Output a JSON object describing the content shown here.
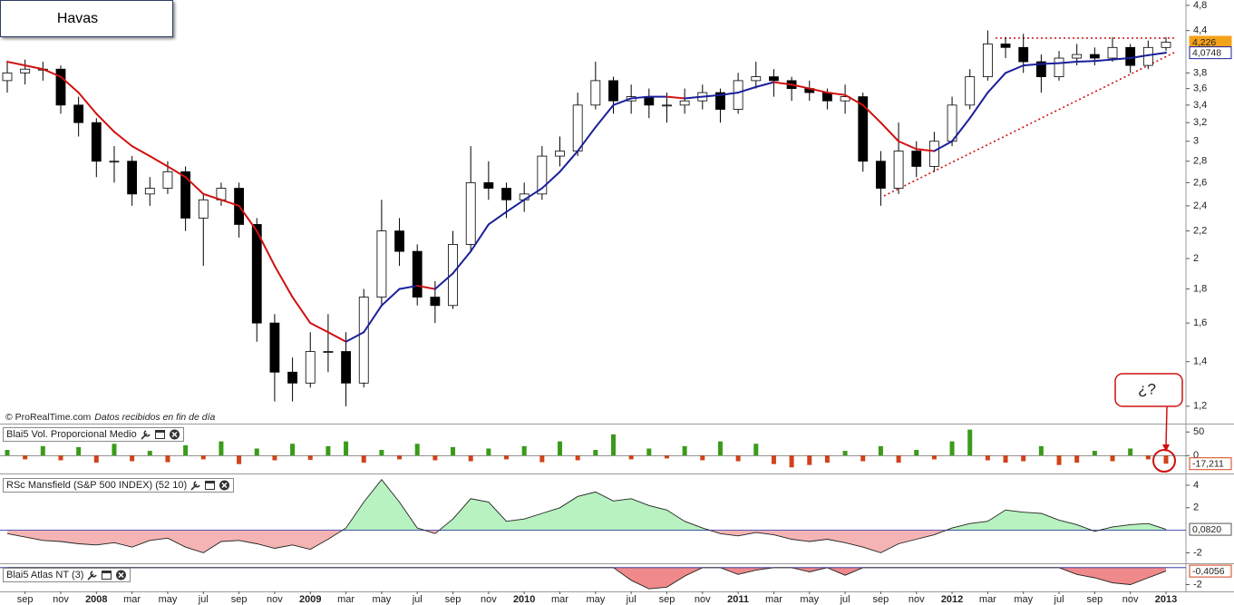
{
  "chart_data": [
    {
      "type": "candlestick",
      "title": "Havas",
      "source": "© ProRealTime.com",
      "source_note": "Datos recibidos en fin de día",
      "annotation": "¿?",
      "categories": [
        null,
        "sep",
        null,
        "nov",
        null,
        "2008",
        null,
        "mar",
        null,
        "may",
        null,
        "jul",
        null,
        "sep",
        null,
        "nov",
        null,
        "2009",
        null,
        "mar",
        null,
        "may",
        null,
        "jul",
        null,
        "sep",
        null,
        "nov",
        null,
        "2010",
        null,
        "mar",
        null,
        "may",
        null,
        "jul",
        null,
        "sep",
        null,
        "nov",
        null,
        "2011",
        null,
        "mar",
        null,
        "may",
        null,
        "jul",
        null,
        "sep",
        null,
        "nov",
        null,
        "2012",
        null,
        "mar",
        null,
        "may",
        null,
        "jul",
        null,
        "sep",
        null,
        "nov",
        null,
        "2013"
      ],
      "open": [
        3.7,
        3.8,
        3.85,
        3.85,
        3.4,
        3.2,
        2.8,
        2.8,
        2.5,
        2.55,
        2.7,
        2.3,
        2.45,
        2.55,
        2.25,
        1.6,
        1.35,
        1.3,
        1.45,
        1.45,
        1.3,
        1.75,
        2.2,
        2.05,
        1.75,
        1.7,
        2.1,
        2.6,
        2.55,
        2.45,
        2.5,
        2.85,
        2.9,
        3.4,
        3.7,
        3.45,
        3.5,
        3.4,
        3.4,
        3.45,
        3.55,
        3.35,
        3.7,
        3.75,
        3.7,
        3.6,
        3.55,
        3.45,
        3.5,
        2.8,
        2.55,
        2.9,
        2.75,
        3.0,
        3.4,
        3.75,
        4.2,
        4.15,
        3.95,
        3.75,
        4.0,
        4.05,
        4.0,
        4.15,
        3.9,
        4.15
      ],
      "high": [
        3.95,
        3.98,
        3.95,
        3.9,
        3.5,
        3.25,
        2.95,
        2.85,
        2.65,
        2.8,
        2.75,
        2.5,
        2.6,
        2.6,
        2.3,
        1.65,
        1.42,
        1.55,
        1.65,
        1.55,
        1.8,
        2.45,
        2.3,
        2.1,
        1.85,
        2.2,
        2.95,
        2.8,
        2.6,
        2.6,
        2.95,
        3.05,
        3.55,
        3.95,
        3.75,
        3.65,
        3.6,
        3.55,
        3.6,
        3.65,
        3.6,
        3.8,
        3.95,
        3.85,
        3.75,
        3.7,
        3.6,
        3.65,
        3.55,
        2.9,
        3.2,
        3.0,
        3.1,
        3.5,
        3.85,
        4.4,
        4.3,
        4.35,
        4.05,
        4.1,
        4.2,
        4.15,
        4.3,
        4.2,
        4.25,
        4.3
      ],
      "low": [
        3.55,
        3.65,
        3.7,
        3.3,
        3.05,
        2.65,
        2.6,
        2.4,
        2.4,
        2.5,
        2.2,
        1.95,
        2.4,
        2.15,
        1.5,
        1.22,
        1.22,
        1.28,
        1.35,
        1.2,
        1.28,
        1.7,
        1.95,
        1.7,
        1.6,
        1.68,
        2.05,
        2.45,
        2.3,
        2.35,
        2.45,
        2.75,
        2.85,
        3.35,
        3.3,
        3.3,
        3.25,
        3.2,
        3.3,
        3.35,
        3.2,
        3.3,
        3.6,
        3.5,
        3.45,
        3.45,
        3.35,
        3.3,
        2.7,
        2.4,
        2.5,
        2.65,
        2.7,
        2.95,
        3.35,
        3.7,
        4.0,
        3.8,
        3.55,
        3.7,
        3.9,
        3.9,
        3.95,
        3.8,
        3.85,
        4.1
      ],
      "close": [
        3.8,
        3.85,
        3.85,
        3.4,
        3.2,
        2.8,
        2.8,
        2.5,
        2.55,
        2.7,
        2.3,
        2.45,
        2.55,
        2.25,
        1.6,
        1.35,
        1.3,
        1.45,
        1.45,
        1.3,
        1.75,
        2.2,
        2.05,
        1.75,
        1.7,
        2.1,
        2.6,
        2.55,
        2.45,
        2.5,
        2.85,
        2.9,
        3.4,
        3.7,
        3.45,
        3.5,
        3.4,
        3.4,
        3.45,
        3.55,
        3.35,
        3.7,
        3.75,
        3.7,
        3.6,
        3.55,
        3.45,
        3.5,
        2.8,
        2.55,
        2.9,
        2.75,
        3.0,
        3.4,
        3.75,
        4.2,
        4.15,
        3.95,
        3.75,
        4.0,
        4.05,
        4.0,
        4.15,
        3.9,
        4.15,
        4.226
      ],
      "value_labels": [
        null,
        null,
        null,
        null,
        null,
        null,
        null,
        null,
        null,
        null,
        null,
        null,
        null,
        null,
        null,
        null,
        null,
        null,
        null,
        null,
        null,
        null,
        null,
        null,
        null,
        null,
        null,
        null,
        null,
        null,
        null,
        null,
        null,
        null,
        null,
        null,
        null,
        null,
        null,
        null,
        null,
        null,
        null,
        null,
        null,
        null,
        null,
        null,
        null,
        null,
        null,
        null,
        null,
        null,
        null,
        null,
        null,
        null,
        null,
        null,
        null,
        null,
        null,
        null,
        null,
        "4,226"
      ],
      "up_color": "#ffffff",
      "down_color": "#000000",
      "label_color": "#f5a21b",
      "moving_average": {
        "values": [
          3.95,
          3.9,
          3.85,
          3.75,
          3.55,
          3.3,
          3.1,
          2.95,
          2.85,
          2.75,
          2.65,
          2.5,
          2.45,
          2.4,
          2.2,
          1.95,
          1.75,
          1.6,
          1.55,
          1.5,
          1.55,
          1.7,
          1.8,
          1.82,
          1.8,
          1.9,
          2.05,
          2.25,
          2.35,
          2.45,
          2.55,
          2.7,
          2.9,
          3.15,
          3.4,
          3.48,
          3.5,
          3.5,
          3.48,
          3.5,
          3.52,
          3.55,
          3.62,
          3.68,
          3.65,
          3.6,
          3.55,
          3.52,
          3.4,
          3.2,
          3.0,
          2.92,
          2.9,
          3.0,
          3.25,
          3.55,
          3.8,
          3.9,
          3.92,
          3.93,
          3.95,
          3.96,
          3.98,
          4.0,
          4.04,
          4.0748
        ],
        "value_labels": [
          null,
          null,
          null,
          null,
          null,
          null,
          null,
          null,
          null,
          null,
          null,
          null,
          null,
          null,
          null,
          null,
          null,
          null,
          null,
          null,
          null,
          null,
          null,
          null,
          null,
          null,
          null,
          null,
          null,
          null,
          null,
          null,
          null,
          null,
          null,
          null,
          null,
          null,
          null,
          null,
          null,
          null,
          null,
          null,
          null,
          null,
          null,
          null,
          null,
          null,
          null,
          null,
          null,
          null,
          null,
          null,
          null,
          null,
          null,
          null,
          null,
          null,
          null,
          null,
          null,
          "4,0748"
        ],
        "up_color": "#1b1f9a",
        "down_color": "#d01010"
      },
      "log_scale": true,
      "grid": false,
      "ylim": [
        1.13,
        4.89
      ],
      "yticks": [
        {
          "value": 1.2,
          "label": "1,2"
        },
        {
          "value": 1.4,
          "label": "1,4"
        },
        {
          "value": 1.6,
          "label": "1,6"
        },
        {
          "value": 1.8,
          "label": "1,8"
        },
        2,
        {
          "value": 2.2,
          "label": "2,2"
        },
        {
          "value": 2.4,
          "label": "2,4"
        },
        {
          "value": 2.6,
          "label": "2,6"
        },
        {
          "value": 2.8,
          "label": "2,8"
        },
        3,
        {
          "value": 3.2,
          "label": "3,2"
        },
        {
          "value": 3.4,
          "label": "3,4"
        },
        {
          "value": 3.6,
          "label": "3,6"
        },
        {
          "value": 3.8,
          "label": "3,8"
        },
        {
          "value": 4.4,
          "label": "4,4"
        },
        {
          "value": 4.8,
          "label": "4,8"
        }
      ]
    },
    {
      "type": "bar",
      "title": "Blai5 Vol. Proporcional Medio",
      "values": [
        12,
        -8,
        20,
        -10,
        18,
        -15,
        25,
        -12,
        10,
        -14,
        22,
        -8,
        30,
        -18,
        15,
        -10,
        25,
        -9,
        20,
        30,
        -15,
        12,
        -8,
        25,
        -10,
        18,
        -12,
        15,
        -8,
        20,
        -14,
        30,
        -10,
        12,
        45,
        -8,
        15,
        -6,
        20,
        -10,
        30,
        -12,
        25,
        -18,
        -25,
        -20,
        -15,
        10,
        -12,
        20,
        -15,
        12,
        -8,
        30,
        55,
        -10,
        -15,
        -12,
        20,
        -20,
        -15,
        10,
        -12,
        15,
        -8,
        -17.211
      ],
      "value_labels": [
        null,
        null,
        null,
        null,
        null,
        null,
        null,
        null,
        null,
        null,
        null,
        null,
        null,
        null,
        null,
        null,
        null,
        null,
        null,
        null,
        null,
        null,
        null,
        null,
        null,
        null,
        null,
        null,
        null,
        null,
        null,
        null,
        null,
        null,
        null,
        null,
        null,
        null,
        null,
        null,
        null,
        null,
        null,
        null,
        null,
        null,
        null,
        null,
        null,
        null,
        null,
        null,
        null,
        null,
        null,
        null,
        null,
        null,
        null,
        null,
        null,
        null,
        null,
        null,
        null,
        "-17,211"
      ],
      "up_color": "#3a9b1a",
      "down_color": "#d2421a",
      "ylim": [
        -36,
        62
      ],
      "yticks": [
        50,
        0
      ]
    },
    {
      "type": "area",
      "title": "RSc Mansfield (S&P 500 INDEX) (52 10)",
      "values": [
        -0.3,
        -0.6,
        -0.9,
        -1.0,
        -1.2,
        -1.3,
        -1.1,
        -1.5,
        -0.9,
        -0.7,
        -1.5,
        -2.0,
        -1.0,
        -0.9,
        -1.2,
        -1.6,
        -1.3,
        -1.7,
        -0.8,
        0.2,
        2.5,
        4.5,
        2.5,
        0.2,
        -0.3,
        1.0,
        2.8,
        2.5,
        0.8,
        1.0,
        1.5,
        2.0,
        3.0,
        3.4,
        2.6,
        2.8,
        2.2,
        1.8,
        0.8,
        0.2,
        -0.3,
        -0.5,
        -0.2,
        -0.4,
        -0.8,
        -1.0,
        -0.8,
        -1.1,
        -1.5,
        -2.0,
        -1.2,
        -0.8,
        -0.4,
        0.2,
        0.6,
        0.8,
        1.8,
        1.6,
        1.5,
        0.9,
        0.5,
        -0.1,
        0.3,
        0.5,
        0.6,
        0.082
      ],
      "value_labels": [
        null,
        null,
        null,
        null,
        null,
        null,
        null,
        null,
        null,
        null,
        null,
        null,
        null,
        null,
        null,
        null,
        null,
        null,
        null,
        null,
        null,
        null,
        null,
        null,
        null,
        null,
        null,
        null,
        null,
        null,
        null,
        null,
        null,
        null,
        null,
        null,
        null,
        null,
        null,
        null,
        null,
        null,
        null,
        null,
        null,
        null,
        null,
        null,
        null,
        null,
        null,
        null,
        null,
        null,
        null,
        null,
        null,
        null,
        null,
        null,
        null,
        null,
        null,
        null,
        null,
        "0,0820"
      ],
      "up_color": "#b8f2c0",
      "down_color": "#f4b4b4",
      "ylim": [
        -2.85,
        4.88
      ],
      "yticks": [
        4,
        2,
        -2
      ]
    },
    {
      "type": "area",
      "title": "Blai5 Atlas NT (3)",
      "values": [
        0,
        0,
        0,
        0,
        0,
        0,
        0,
        0,
        0,
        0,
        0,
        0,
        0,
        0,
        0,
        0,
        0,
        0,
        0,
        0,
        0,
        0,
        0,
        0,
        0,
        0,
        0,
        0,
        0,
        0,
        0,
        0,
        0,
        0,
        0,
        -1.5,
        -2.5,
        -2.3,
        -1.0,
        0,
        0,
        -0.8,
        -0.3,
        0,
        0,
        -0.5,
        0,
        -0.9,
        0,
        0,
        0,
        0,
        0,
        0,
        0,
        0,
        0,
        0,
        0,
        0,
        -0.8,
        -1.2,
        -1.8,
        -2.0,
        -1.2,
        -0.4056
      ],
      "value_labels": [
        null,
        null,
        null,
        null,
        null,
        null,
        null,
        null,
        null,
        null,
        null,
        null,
        null,
        null,
        null,
        null,
        null,
        null,
        null,
        null,
        null,
        null,
        null,
        null,
        null,
        null,
        null,
        null,
        null,
        null,
        null,
        null,
        null,
        null,
        null,
        null,
        null,
        null,
        null,
        null,
        null,
        null,
        null,
        null,
        null,
        null,
        null,
        null,
        null,
        null,
        null,
        null,
        null,
        null,
        null,
        null,
        null,
        null,
        null,
        null,
        null,
        null,
        null,
        null,
        null,
        "-0,4056"
      ],
      "up_color": "#b8f2c0",
      "down_color": "#f08a8a",
      "ylim": [
        -2.8,
        0.3
      ],
      "yticks": [
        -2
      ]
    }
  ]
}
